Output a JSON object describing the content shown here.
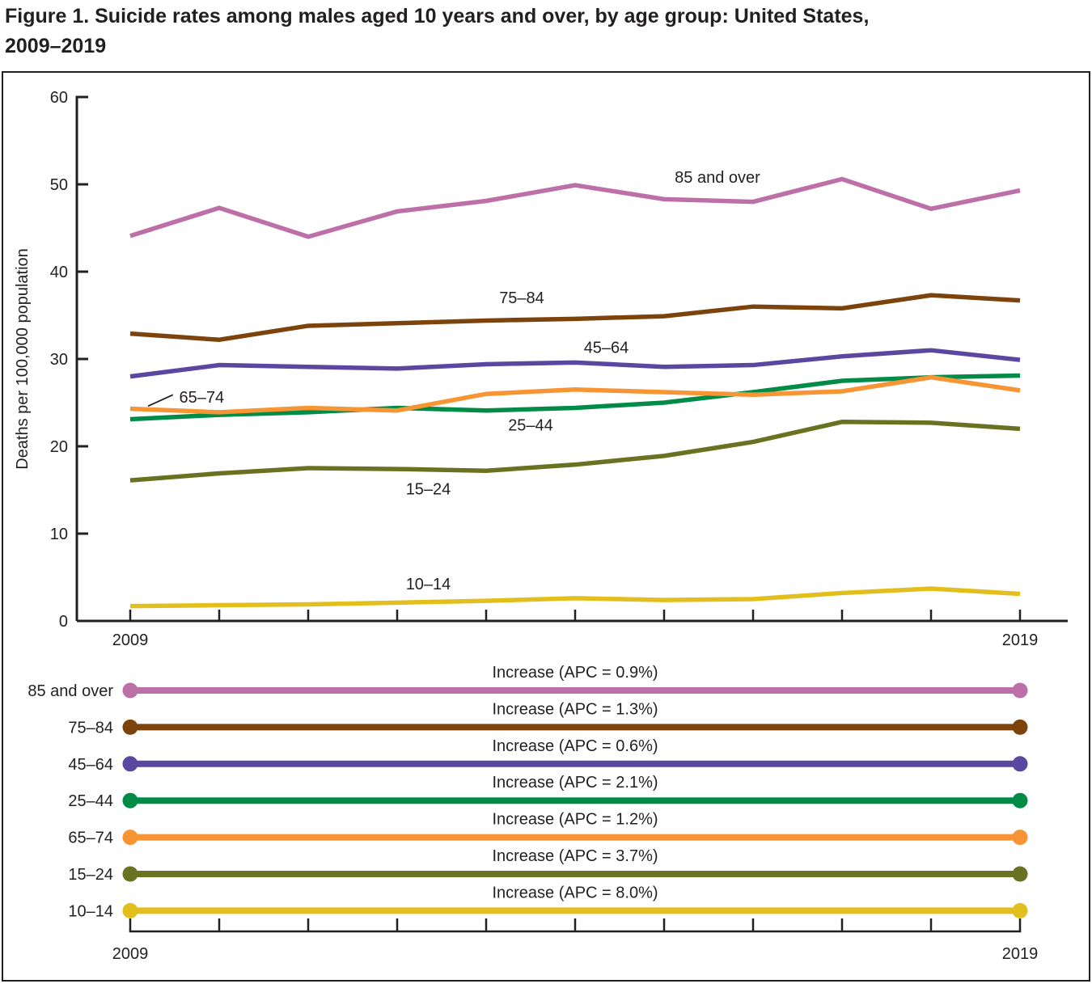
{
  "title": {
    "line1": "Figure 1. Suicide rates among males aged 10 years and over, by age group: United States,",
    "line2": "2009–2019"
  },
  "colors": {
    "text": "#231f20",
    "axis": "#231f20",
    "background": "#ffffff"
  },
  "chart_data": {
    "type": "line",
    "title": "Figure 1. Suicide rates among males aged 10 years and over, by age group: United States, 2009–2019",
    "xlabel": "",
    "ylabel": "Deaths per 100,000 population",
    "x": [
      2009,
      2010,
      2011,
      2012,
      2013,
      2014,
      2015,
      2016,
      2017,
      2018,
      2019
    ],
    "x_tick_labels_shown": [
      "2009",
      "2019"
    ],
    "ylim": [
      0,
      60
    ],
    "yticks": [
      0,
      10,
      20,
      30,
      40,
      50,
      60
    ],
    "grid": false,
    "legend_position": "lower-panel",
    "series": [
      {
        "name": "85 and over",
        "color": "#bd6fa7",
        "values": [
          44.1,
          47.3,
          44.0,
          46.9,
          48.1,
          49.9,
          48.3,
          48.0,
          50.6,
          47.2,
          49.3
        ],
        "apc_label": "Increase (APC = 0.9%)",
        "label_pos": {
          "x": 2015.6,
          "v": 50.2,
          "anchor": "middle"
        }
      },
      {
        "name": "75–84",
        "color": "#7d430d",
        "values": [
          32.9,
          32.2,
          33.8,
          34.1,
          34.4,
          34.6,
          34.9,
          36.0,
          35.8,
          37.3,
          36.7
        ],
        "apc_label": "Increase (APC = 1.3%)",
        "label_pos": {
          "x": 2013.4,
          "v": 36.4,
          "anchor": "middle"
        }
      },
      {
        "name": "45–64",
        "color": "#5a47a0",
        "values": [
          28.0,
          29.3,
          29.1,
          28.9,
          29.4,
          29.6,
          29.1,
          29.3,
          30.3,
          31.0,
          29.9
        ],
        "apc_label": "Increase (APC = 0.6%)",
        "label_pos": {
          "x": 2014.35,
          "v": 30.7,
          "anchor": "middle"
        }
      },
      {
        "name": "25–44",
        "color": "#008b46",
        "values": [
          23.1,
          23.6,
          23.9,
          24.4,
          24.1,
          24.4,
          25.0,
          26.2,
          27.5,
          27.9,
          28.1
        ],
        "apc_label": "Increase (APC = 2.1%)",
        "label_pos": {
          "x": 2013.5,
          "v": 21.8,
          "anchor": "middle"
        }
      },
      {
        "name": "65–74",
        "color": "#f79433",
        "values": [
          24.3,
          23.9,
          24.4,
          24.1,
          26.0,
          26.5,
          26.2,
          25.9,
          26.3,
          27.9,
          26.4
        ],
        "apc_label": "Increase (APC = 1.2%)",
        "label_pos": {
          "x": 2009.55,
          "v": 25.0,
          "anchor": "start"
        },
        "leader": {
          "x1": 2009.2,
          "v1": 24.6,
          "x2": 2009.48,
          "v2": 25.9
        }
      },
      {
        "name": "15–24",
        "color": "#687221",
        "values": [
          16.1,
          16.9,
          17.5,
          17.4,
          17.2,
          17.9,
          18.9,
          20.5,
          22.8,
          22.7,
          22.0
        ],
        "apc_label": "Increase (APC = 3.7%)",
        "label_pos": {
          "x": 2012.35,
          "v": 14.5,
          "anchor": "middle"
        }
      },
      {
        "name": "10–14",
        "color": "#e2bf1d",
        "values": [
          1.7,
          1.8,
          1.9,
          2.1,
          2.3,
          2.6,
          2.4,
          2.5,
          3.2,
          3.7,
          3.1
        ],
        "apc_label": "Increase (APC = 8.0%)",
        "label_pos": {
          "x": 2012.35,
          "v": 3.6,
          "anchor": "middle"
        }
      }
    ]
  },
  "x_axis": {
    "start_label": "2009",
    "end_label": "2019"
  },
  "legend_panel": {
    "x_start_label": "2009",
    "x_end_label": "2019"
  }
}
